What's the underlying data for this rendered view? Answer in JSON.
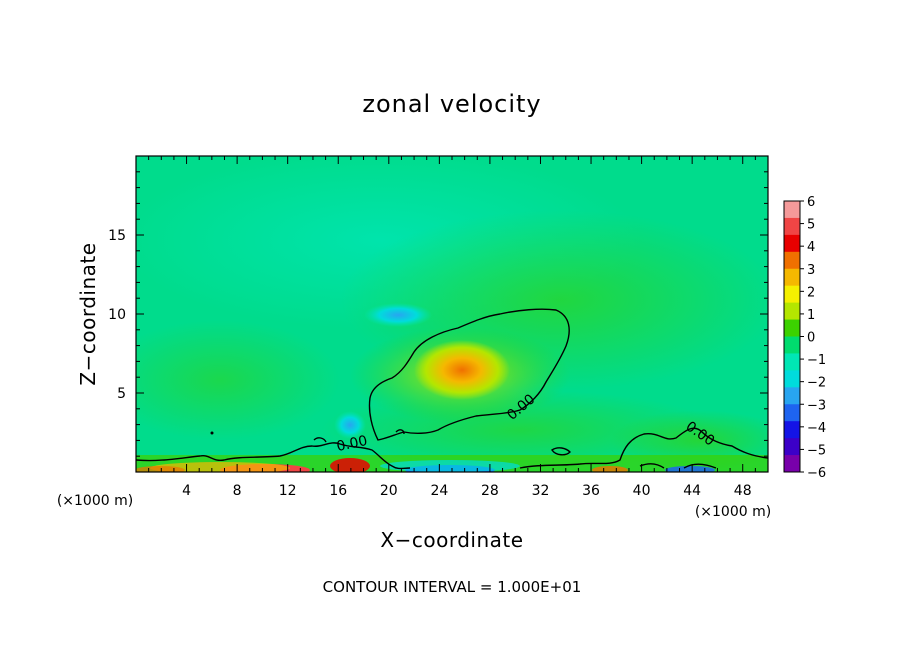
{
  "chart_data": {
    "type": "heatmap",
    "title": "zonal velocity",
    "xlabel": "X−coordinate",
    "ylabel": "Z−coordinate",
    "x_unit_left": "(×1000 m)",
    "x_unit_right": "(×1000 m)",
    "footer": "CONTOUR INTERVAL = 1.000E+01",
    "xlim": [
      0,
      50
    ],
    "ylim": [
      0,
      20
    ],
    "x_ticks": [
      4,
      8,
      12,
      16,
      20,
      24,
      28,
      32,
      36,
      40,
      44,
      48
    ],
    "y_ticks": [
      5,
      10,
      15
    ],
    "colorbar": {
      "range": [
        -6,
        6
      ],
      "ticks": [
        "6",
        "5",
        "4",
        "3",
        "2",
        "1",
        "0",
        "−1",
        "−2",
        "−3",
        "−4",
        "−5",
        "−6"
      ],
      "colors": [
        "#f59a9a",
        "#f04545",
        "#e80000",
        "#f07000",
        "#f5b800",
        "#f5f000",
        "#b4e600",
        "#3cd200",
        "#00dc6e",
        "#00e6b4",
        "#00dcdc",
        "#28a5f0",
        "#1e64f0",
        "#1414e6",
        "#3c00c8",
        "#7800aa"
      ]
    },
    "background_value": -0.5,
    "features": [
      {
        "x": 26.5,
        "z": 6.3,
        "value": 2.8
      },
      {
        "x": 24.5,
        "z": 7.8,
        "value": 1.5
      },
      {
        "x": 22,
        "z": 4.2,
        "value": 1.2
      },
      {
        "x": 20.5,
        "z": 9.8,
        "value": -2.5
      },
      {
        "x": 16.5,
        "z": 3.1,
        "value": -2.5
      },
      {
        "x": 10,
        "z": 0.3,
        "value": 3.5
      },
      {
        "x": 17,
        "z": 0.5,
        "value": 3.5
      },
      {
        "x": 26,
        "z": 0.2,
        "value": -4.0
      },
      {
        "x": 44,
        "z": 0.3,
        "value": -3.0
      },
      {
        "x": 40,
        "z": 1.5,
        "value": 1.0
      },
      {
        "x": 32,
        "z": 16,
        "value": 0.3
      }
    ],
    "contour_label": "0.00"
  }
}
